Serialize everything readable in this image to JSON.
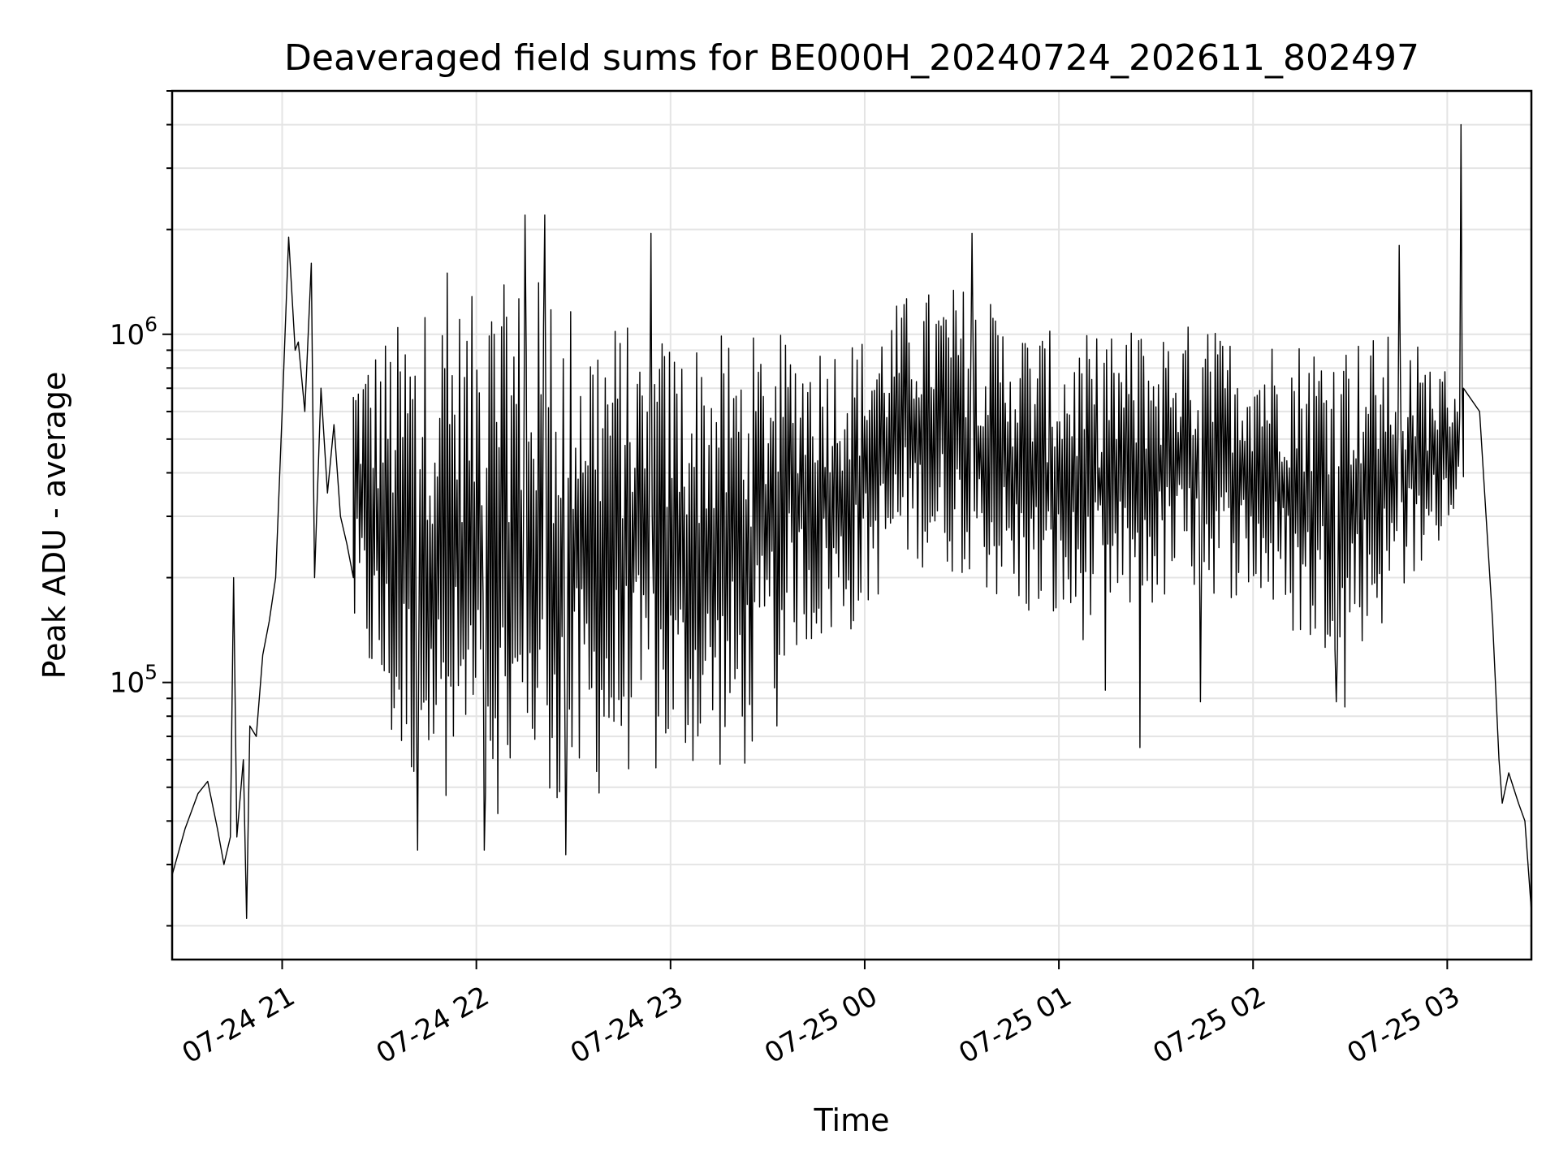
{
  "chart_data": {
    "type": "line",
    "title": "Deaveraged field sums for BE000H_20240724_202611_802497",
    "xlabel": "Time",
    "ylabel": "Peak ADU - average",
    "y_scale": "log",
    "ylim": [
      16000,
      5000000
    ],
    "xlim": [
      "2024-07-24 20:26",
      "2024-07-25 03:26"
    ],
    "grid": true,
    "x_ticks": [
      {
        "label": "07-24 21",
        "value": "2024-07-24 21:00"
      },
      {
        "label": "07-24 22",
        "value": "2024-07-24 22:00"
      },
      {
        "label": "07-24 23",
        "value": "2024-07-24 23:00"
      },
      {
        "label": "07-25 00",
        "value": "2024-07-25 00:00"
      },
      {
        "label": "07-25 01",
        "value": "2024-07-25 01:00"
      },
      {
        "label": "07-25 02",
        "value": "2024-07-25 02:00"
      },
      {
        "label": "07-25 03",
        "value": "2024-07-25 03:00"
      }
    ],
    "y_ticks": [
      {
        "base": "10",
        "exp": "5",
        "value": 100000
      },
      {
        "base": "10",
        "exp": "6",
        "value": 1000000
      }
    ],
    "series": [
      {
        "color": "#000000",
        "points": [
          [
            "2024-07-24 20:26",
            28000
          ],
          [
            "2024-07-24 20:30",
            38000
          ],
          [
            "2024-07-24 20:34",
            48000
          ],
          [
            "2024-07-24 20:37",
            52000
          ],
          [
            "2024-07-24 20:40",
            38000
          ],
          [
            "2024-07-24 20:42",
            30000
          ],
          [
            "2024-07-24 20:44",
            36000
          ],
          [
            "2024-07-24 20:45",
            200000
          ],
          [
            "2024-07-24 20:46",
            36000
          ],
          [
            "2024-07-24 20:48",
            60000
          ],
          [
            "2024-07-24 20:49",
            21000
          ],
          [
            "2024-07-24 20:50",
            75000
          ],
          [
            "2024-07-24 20:52",
            70000
          ],
          [
            "2024-07-24 20:54",
            120000
          ],
          [
            "2024-07-24 20:56",
            150000
          ],
          [
            "2024-07-24 20:58",
            200000
          ],
          [
            "2024-07-24 21:00",
            600000
          ],
          [
            "2024-07-24 21:02",
            1900000
          ],
          [
            "2024-07-24 21:04",
            900000
          ],
          [
            "2024-07-24 21:05",
            950000
          ],
          [
            "2024-07-24 21:07",
            600000
          ],
          [
            "2024-07-24 21:09",
            1600000
          ],
          [
            "2024-07-24 21:10",
            200000
          ],
          [
            "2024-07-24 21:12",
            700000
          ],
          [
            "2024-07-24 21:14",
            350000
          ],
          [
            "2024-07-24 21:16",
            550000
          ],
          [
            "2024-07-24 21:18",
            300000
          ],
          [
            "2024-07-24 21:20",
            250000
          ],
          [
            "2024-07-24 21:22",
            200000
          ]
        ],
        "band": {
          "start": "2024-07-24 21:22",
          "end": "2024-07-25 03:05",
          "peak_values": [
            [
              21.4,
              900000
            ],
            [
              21.7,
              1200000
            ],
            [
              22.0,
              1300000
            ],
            [
              22.3,
              1500000
            ],
            [
              22.6,
              1200000
            ],
            [
              22.9,
              1000000
            ],
            [
              23.2,
              1000000
            ],
            [
              23.5,
              1000000
            ],
            [
              23.8,
              1000000
            ],
            [
              24.0,
              1000000
            ],
            [
              24.2,
              1300000
            ],
            [
              24.5,
              1400000
            ],
            [
              24.8,
              1100000
            ],
            [
              25.0,
              1000000
            ],
            [
              25.3,
              1000000
            ],
            [
              25.6,
              1100000
            ],
            [
              25.9,
              1000000
            ],
            [
              26.2,
              1000000
            ],
            [
              26.5,
              1000000
            ],
            [
              26.8,
              1000000
            ],
            [
              27.0,
              800000
            ]
          ],
          "trough_values": [
            [
              21.4,
              120000
            ],
            [
              21.6,
              50000
            ],
            [
              21.9,
              45000
            ],
            [
              22.2,
              40000
            ],
            [
              22.5,
              40000
            ],
            [
              22.8,
              55000
            ],
            [
              23.1,
              55000
            ],
            [
              23.4,
              55000
            ],
            [
              23.6,
              120000
            ],
            [
              23.9,
              130000
            ],
            [
              24.2,
              220000
            ],
            [
              24.5,
              200000
            ],
            [
              24.8,
              150000
            ],
            [
              25.1,
              130000
            ],
            [
              25.4,
              150000
            ],
            [
              25.7,
              180000
            ],
            [
              26.0,
              170000
            ],
            [
              26.3,
              120000
            ],
            [
              26.6,
              130000
            ],
            [
              26.9,
              200000
            ],
            [
              27.0,
              300000
            ]
          ],
          "spikes": [
            [
              21.85,
              1500000
            ],
            [
              22.25,
              2200000
            ],
            [
              22.35,
              2200000
            ],
            [
              22.9,
              1950000
            ],
            [
              24.55,
              1950000
            ],
            [
              26.75,
              1800000
            ],
            [
              27.07,
              4000000
            ],
            [
              23.55,
              75000
            ],
            [
              25.42,
              65000
            ],
            [
              25.73,
              88000
            ],
            [
              25.24,
              95000
            ],
            [
              26.47,
              85000
            ],
            [
              26.43,
              88000
            ],
            [
              22.04,
              33000
            ],
            [
              22.46,
              32000
            ],
            [
              21.7,
              33000
            ]
          ]
        },
        "tail_points": [
          [
            "2024-07-25 03:05",
            700000
          ],
          [
            "2024-07-25 03:10",
            600000
          ],
          [
            "2024-07-25 03:12",
            300000
          ],
          [
            "2024-07-25 03:14",
            150000
          ],
          [
            "2024-07-25 03:16",
            60000
          ],
          [
            "2024-07-25 03:17",
            45000
          ],
          [
            "2024-07-25 03:19",
            55000
          ],
          [
            "2024-07-25 03:22",
            45000
          ],
          [
            "2024-07-25 03:24",
            40000
          ],
          [
            "2024-07-25 03:26",
            22000
          ]
        ]
      }
    ]
  }
}
